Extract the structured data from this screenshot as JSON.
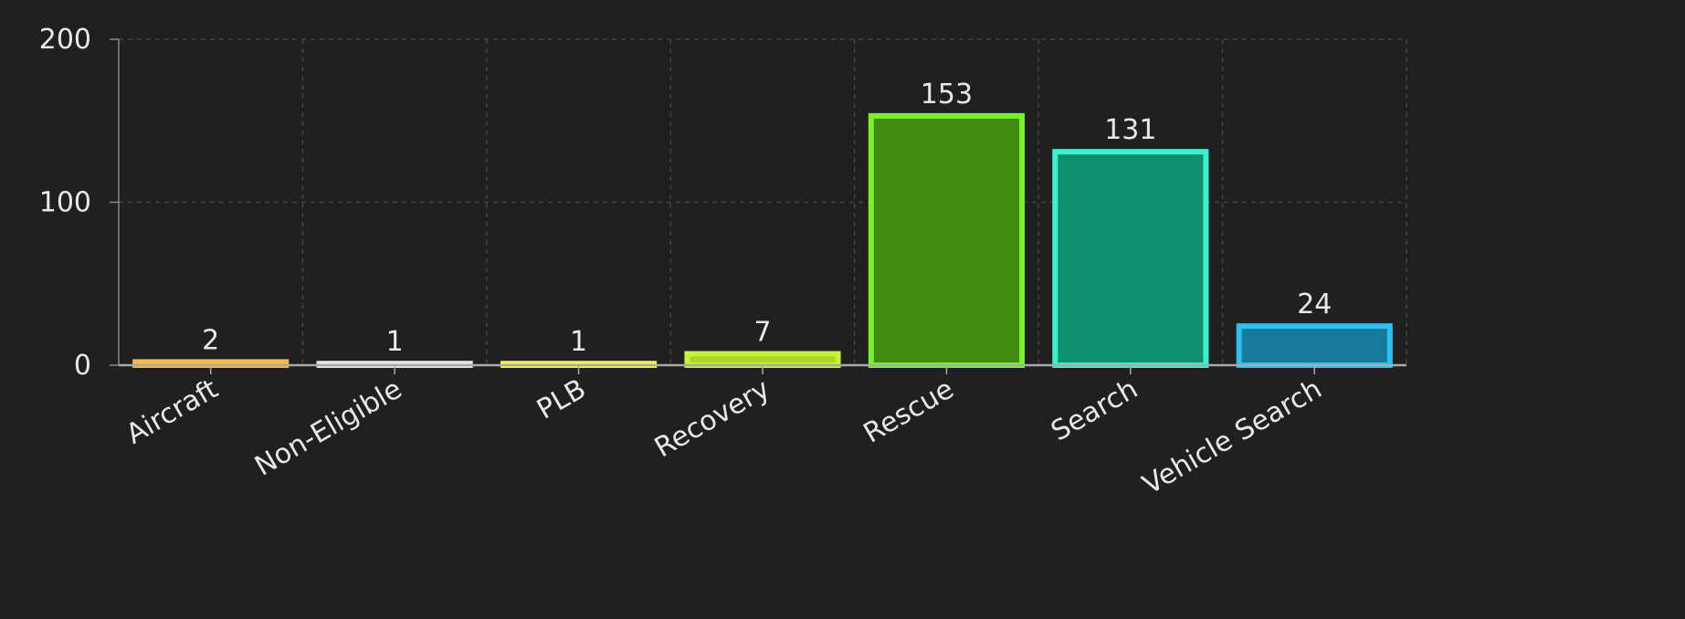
{
  "chart_data": {
    "type": "bar",
    "categories": [
      "Aircraft",
      "Non-Eligible",
      "PLB",
      "Recovery",
      "Rescue",
      "Search",
      "Vehicle Search"
    ],
    "values": [
      2,
      1,
      1,
      7,
      153,
      131,
      24
    ],
    "colors": [
      "#f2ad3c",
      "#dcdcdc",
      "#eef040",
      "#a9d81e",
      "#3e8c12",
      "#0f8f6e",
      "#17799c"
    ],
    "border_colors": [
      "#f7b84a",
      "#e6e6e6",
      "#f4f450",
      "#c6f23a",
      "#7af22a",
      "#3ef0cf",
      "#2cc0f0"
    ],
    "ylim": [
      0,
      200
    ],
    "yticks": [
      0,
      100,
      200
    ],
    "grid": true
  }
}
